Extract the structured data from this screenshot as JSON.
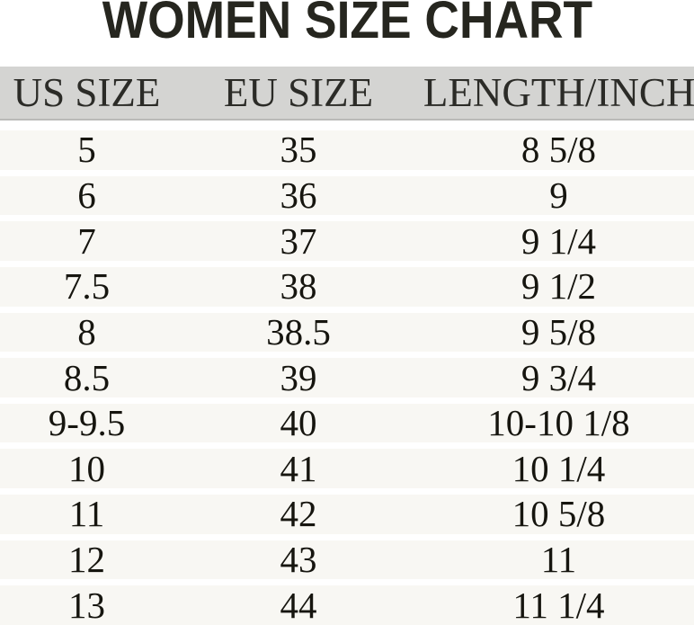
{
  "chart_data": {
    "type": "table",
    "title": "WOMEN SIZE CHART",
    "columns": [
      "US SIZE",
      "EU SIZE",
      "LENGTH/INCH"
    ],
    "rows": [
      [
        "5",
        "35",
        "8 5/8"
      ],
      [
        "6",
        "36",
        "9"
      ],
      [
        "7",
        "37",
        "9 1/4"
      ],
      [
        "7.5",
        "38",
        "9 1/2"
      ],
      [
        "8",
        "38.5",
        "9 5/8"
      ],
      [
        "8.5",
        "39",
        "9 3/4"
      ],
      [
        "9-9.5",
        "40",
        "10-10 1/8"
      ],
      [
        "10",
        "41",
        "10 1/4"
      ],
      [
        "11",
        "42",
        "10 5/8"
      ],
      [
        "12",
        "43",
        "11"
      ],
      [
        "13",
        "44",
        "11 1/4"
      ]
    ],
    "layout": {
      "legend": "none",
      "grid": "horizontal-row-bands",
      "column_widths_percent": [
        25,
        36,
        39
      ]
    },
    "colors": {
      "title_text": "#26261f",
      "header_background": "#d4d4d2",
      "header_border_bottom": "#babab8",
      "header_text": "#2b2b27",
      "row_background": "#f8f7f3",
      "row_separator": "#ffffff",
      "cell_text": "#16150f",
      "page_background": "#ffffff"
    }
  }
}
